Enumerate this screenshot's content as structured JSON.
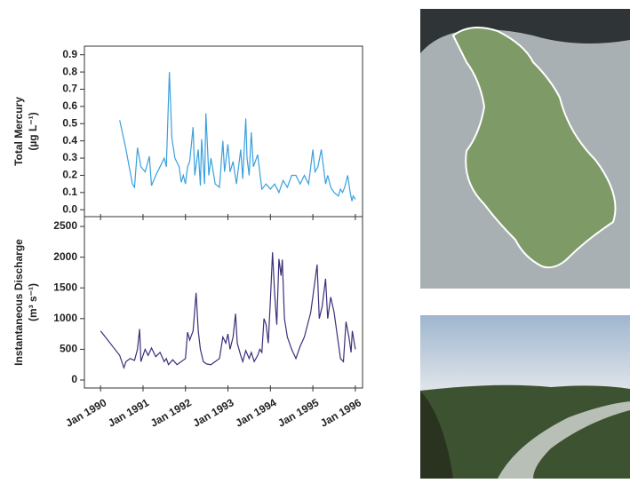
{
  "chart_data": [
    {
      "type": "line",
      "ylabel": [
        "Total Mercury",
        "(µg L⁻¹)"
      ],
      "x": [
        1990.45,
        1990.6,
        1990.75,
        1990.8,
        1990.87,
        1990.95,
        1991.05,
        1991.15,
        1991.2,
        1991.3,
        1991.4,
        1991.5,
        1991.55,
        1991.62,
        1991.68,
        1991.75,
        1991.85,
        1991.9,
        1991.95,
        1992.0,
        1992.05,
        1992.1,
        1992.18,
        1992.22,
        1992.3,
        1992.35,
        1992.38,
        1992.45,
        1992.48,
        1992.55,
        1992.6,
        1992.7,
        1992.8,
        1992.88,
        1992.92,
        1993.0,
        1993.05,
        1993.12,
        1993.2,
        1993.3,
        1993.35,
        1993.42,
        1993.45,
        1993.5,
        1993.55,
        1993.6,
        1993.7,
        1993.8,
        1993.9,
        1994.0,
        1994.1,
        1994.2,
        1994.3,
        1994.4,
        1994.5,
        1994.6,
        1994.7,
        1994.8,
        1994.9,
        1995.0,
        1995.05,
        1995.12,
        1995.2,
        1995.25,
        1995.3,
        1995.35,
        1995.42,
        1995.5,
        1995.6,
        1995.65,
        1995.7,
        1995.75,
        1995.82,
        1995.88,
        1995.92,
        1995.95,
        1996.0
      ],
      "series": [
        {
          "color": "#3aa0dc",
          "values": [
            0.52,
            0.35,
            0.15,
            0.13,
            0.36,
            0.25,
            0.22,
            0.31,
            0.14,
            0.2,
            0.25,
            0.3,
            0.25,
            0.8,
            0.42,
            0.3,
            0.25,
            0.16,
            0.2,
            0.15,
            0.25,
            0.28,
            0.48,
            0.2,
            0.35,
            0.14,
            0.41,
            0.15,
            0.56,
            0.2,
            0.3,
            0.15,
            0.13,
            0.4,
            0.22,
            0.38,
            0.22,
            0.28,
            0.15,
            0.35,
            0.18,
            0.53,
            0.3,
            0.2,
            0.45,
            0.25,
            0.32,
            0.12,
            0.15,
            0.12,
            0.15,
            0.1,
            0.17,
            0.13,
            0.2,
            0.2,
            0.15,
            0.2,
            0.15,
            0.35,
            0.22,
            0.25,
            0.35,
            0.25,
            0.15,
            0.2,
            0.13,
            0.1,
            0.08,
            0.12,
            0.1,
            0.13,
            0.2,
            0.1,
            0.05,
            0.08,
            0.06
          ]
        }
      ],
      "xlim": [
        1989.62,
        1996.17
      ],
      "ylim": [
        -0.04,
        0.95
      ],
      "xticks": [
        {
          "value": 1990,
          "label": "Jan 1990"
        },
        {
          "value": 1991,
          "label": "Jan 1991"
        },
        {
          "value": 1992,
          "label": "Jan 1992"
        },
        {
          "value": 1993,
          "label": "Jan 1993"
        },
        {
          "value": 1994,
          "label": "Jan 1994"
        },
        {
          "value": 1995,
          "label": "Jan 1995"
        },
        {
          "value": 1996,
          "label": "Jan 1996"
        }
      ],
      "yticks": [
        {
          "value": 0,
          "label": "0.0"
        },
        0.1,
        0.2,
        0.3,
        0.4,
        0.5,
        0.6,
        0.7,
        0.8,
        0.9
      ]
    },
    {
      "type": "line",
      "ylabel": [
        "Instantaneous Discharge",
        "(m³ s⁻¹)"
      ],
      "x": [
        1990.0,
        1990.45,
        1990.55,
        1990.6,
        1990.7,
        1990.8,
        1990.87,
        1990.92,
        1990.95,
        1991.05,
        1991.12,
        1991.2,
        1991.3,
        1991.4,
        1991.5,
        1991.55,
        1991.6,
        1991.7,
        1991.8,
        1991.9,
        1992.0,
        1992.05,
        1992.1,
        1992.18,
        1992.25,
        1992.3,
        1992.35,
        1992.42,
        1992.5,
        1992.6,
        1992.7,
        1992.8,
        1992.88,
        1992.95,
        1993.0,
        1993.05,
        1993.12,
        1993.18,
        1993.22,
        1993.3,
        1993.35,
        1993.42,
        1993.5,
        1993.55,
        1993.62,
        1993.7,
        1993.75,
        1993.8,
        1993.85,
        1993.9,
        1993.95,
        1994.0,
        1994.05,
        1994.1,
        1994.15,
        1994.2,
        1994.25,
        1994.28,
        1994.33,
        1994.4,
        1994.5,
        1994.6,
        1994.7,
        1994.8,
        1994.95,
        1995.1,
        1995.15,
        1995.22,
        1995.3,
        1995.35,
        1995.42,
        1995.5,
        1995.58,
        1995.65,
        1995.72,
        1995.78,
        1995.85,
        1995.9,
        1995.93,
        1996.0
      ],
      "series": [
        {
          "color": "#3b2f7a",
          "values": [
            800,
            400,
            200,
            300,
            350,
            320,
            500,
            830,
            300,
            500,
            400,
            520,
            380,
            450,
            300,
            350,
            250,
            330,
            250,
            300,
            350,
            780,
            650,
            800,
            1420,
            800,
            500,
            300,
            260,
            250,
            300,
            350,
            700,
            600,
            750,
            500,
            700,
            1080,
            600,
            400,
            300,
            480,
            350,
            450,
            300,
            400,
            500,
            450,
            1000,
            900,
            600,
            1300,
            2080,
            1400,
            900,
            1970,
            1700,
            1960,
            1000,
            700,
            500,
            350,
            550,
            700,
            1100,
            1880,
            1000,
            1200,
            1650,
            1000,
            1350,
            1100,
            700,
            350,
            300,
            950,
            700,
            450,
            800,
            500
          ]
        }
      ],
      "xlim": [
        1989.62,
        1996.17
      ],
      "ylim": [
        -130,
        2660
      ],
      "xticks": [
        {
          "value": 1990,
          "label": "Jan 1990"
        },
        {
          "value": 1991,
          "label": "Jan 1991"
        },
        {
          "value": 1992,
          "label": "Jan 1992"
        },
        {
          "value": 1993,
          "label": "Jan 1993"
        },
        {
          "value": 1994,
          "label": "Jan 1994"
        },
        {
          "value": 1995,
          "label": "Jan 1995"
        },
        {
          "value": 1996,
          "label": "Jan 1996"
        }
      ],
      "yticks": [
        0,
        500,
        1000,
        1500,
        2000,
        2500
      ]
    }
  ]
}
